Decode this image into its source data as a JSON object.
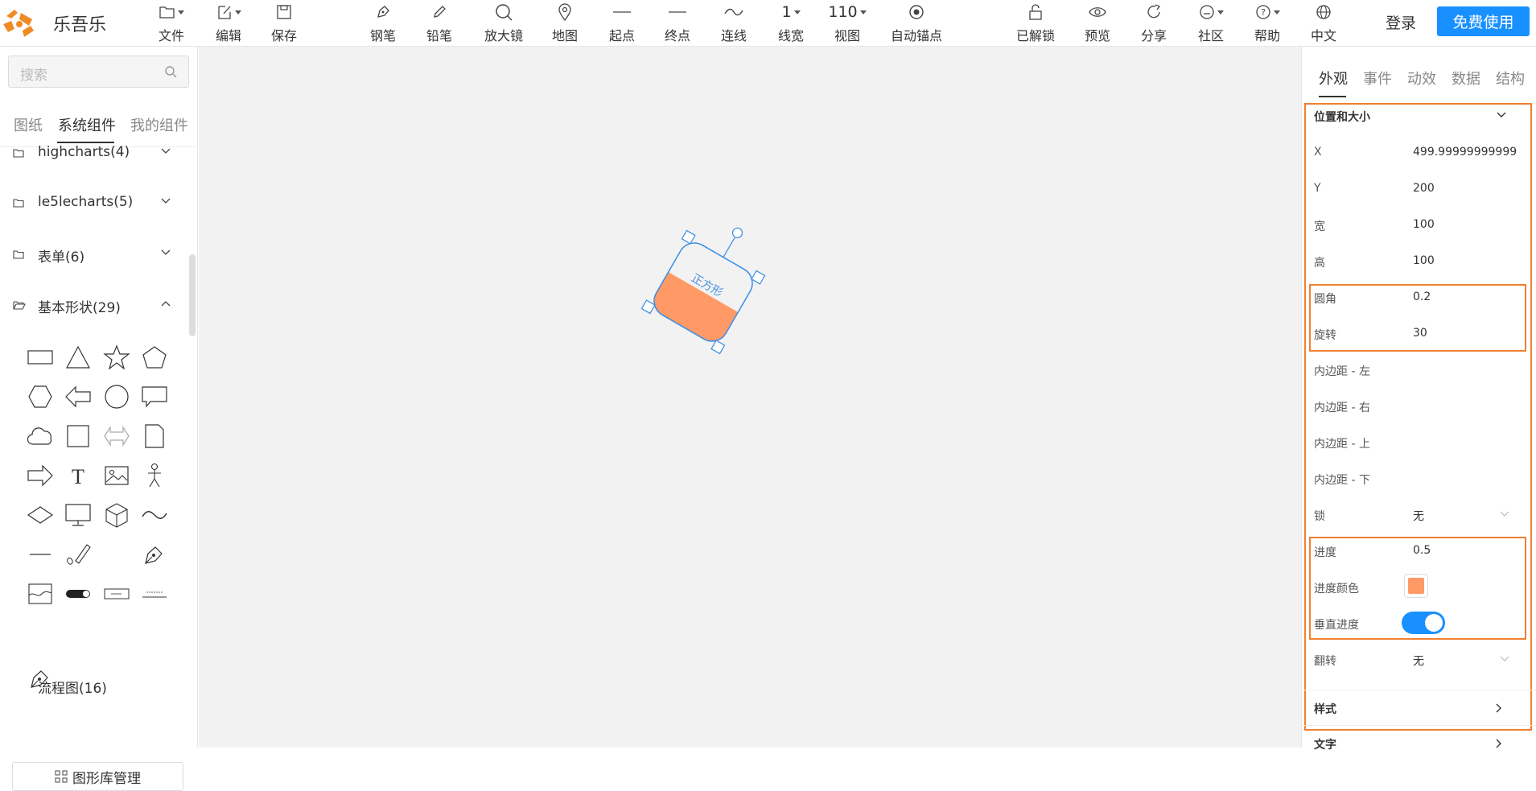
{
  "app": {
    "brand": "乐吾乐",
    "accent": "#1890ff",
    "highlight": "#f08030"
  },
  "toolbar": {
    "file": "文件",
    "edit": "编辑",
    "save": "保存",
    "pen": "钢笔",
    "pencil": "铅笔",
    "magnifier": "放大镜",
    "map": "地图",
    "start": "起点",
    "end": "终点",
    "connector": "连线",
    "line_width_value": "1",
    "line_width": "线宽",
    "zoom_value": "110",
    "view": "视图",
    "anchor": "自动锚点",
    "unlocked": "已解锁",
    "preview": "预览",
    "share": "分享",
    "community": "社区",
    "help": "帮助",
    "lang": "中文",
    "login": "登录",
    "free": "免费使用"
  },
  "left": {
    "search_placeholder": "搜索",
    "tabs": [
      "图纸",
      "系统组件",
      "我的组件"
    ],
    "groups": [
      {
        "label": "highcharts(4)"
      },
      {
        "label": "le5lecharts(5)"
      },
      {
        "label": "表单(6)"
      },
      {
        "label": "基本形状(29)"
      },
      {
        "label": "流程图(16)"
      }
    ],
    "library_button": "图形库管理"
  },
  "canvas": {
    "shape_label": "正方形",
    "shape_fill": "#ff9966",
    "progress": 0.5
  },
  "right": {
    "tabs": [
      "外观",
      "事件",
      "动效",
      "数据",
      "结构"
    ],
    "section_title": "位置和大小",
    "props": {
      "x_label": "X",
      "x_value": "499.99999999999",
      "y_label": "Y",
      "y_value": "200",
      "w_label": "宽",
      "w_value": "100",
      "h_label": "高",
      "h_value": "100",
      "radius_label": "圆角",
      "radius_value": "0.2",
      "rotate_label": "旋转",
      "rotate_value": "30",
      "pad_left": "内边距 - 左",
      "pad_right": "内边距 - 右",
      "pad_top": "内边距 - 上",
      "pad_bottom": "内边距 - 下",
      "lock_label": "锁",
      "lock_value": "无",
      "progress_label": "进度",
      "progress_value": "0.5",
      "progress_color_label": "进度颜色",
      "progress_color": "#ff9966",
      "vertical_label": "垂直进度",
      "vertical_on": true,
      "flip_label": "翻转",
      "flip_value": "无"
    },
    "style_section": "样式",
    "text_section": "文字"
  }
}
